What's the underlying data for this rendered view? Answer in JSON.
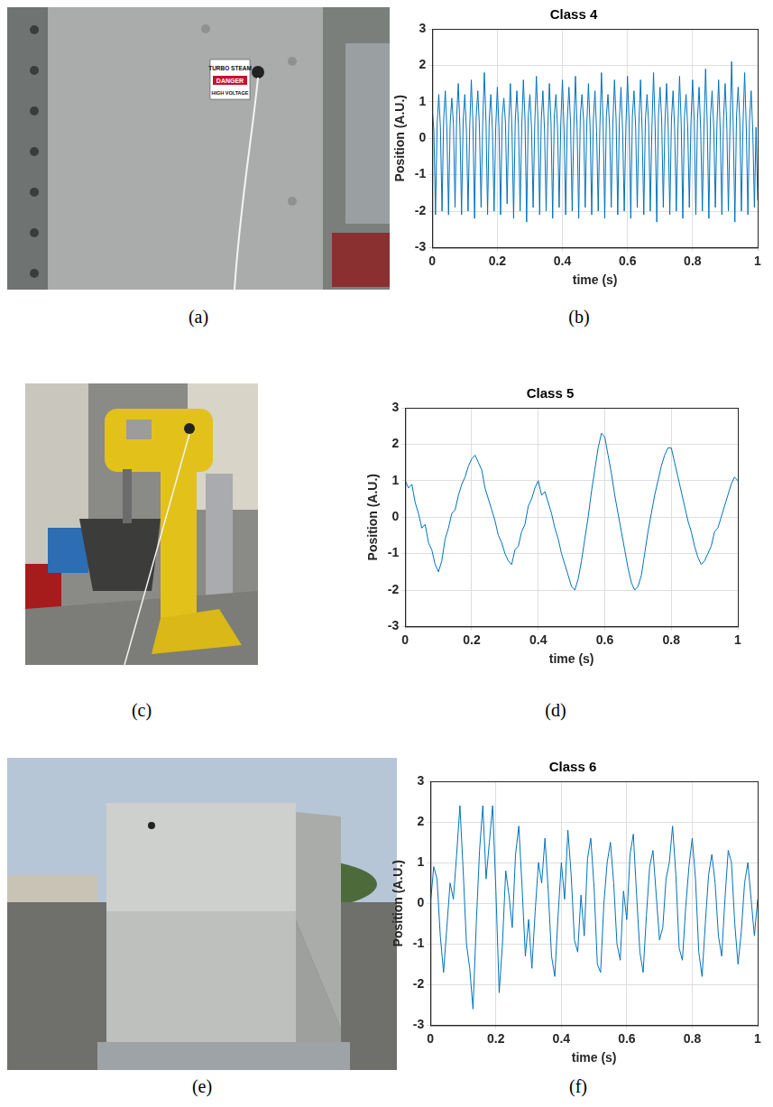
{
  "chart_data": [
    {
      "panel": "(b)",
      "type": "line",
      "title": "Class 4",
      "x_label": "time (s)",
      "y_label": "Position (A.U.)",
      "color": "#0072bd",
      "grid": true,
      "xlim": [
        0,
        1
      ],
      "xticks": [
        0,
        0.2,
        0.4,
        0.6,
        0.8,
        1
      ],
      "ylim": [
        -3,
        3
      ],
      "yticks": [
        -3,
        -2,
        -1,
        0,
        1,
        2,
        3
      ],
      "x": [
        0,
        0.005,
        0.01,
        0.015,
        0.02,
        0.025,
        0.03,
        0.035,
        0.04,
        0.045,
        0.05,
        0.055,
        0.06,
        0.065,
        0.07,
        0.075,
        0.08,
        0.085,
        0.09,
        0.095,
        0.1,
        0.105,
        0.11,
        0.115,
        0.12,
        0.125,
        0.13,
        0.135,
        0.14,
        0.145,
        0.15,
        0.155,
        0.16,
        0.165,
        0.17,
        0.175,
        0.18,
        0.185,
        0.19,
        0.195,
        0.2,
        0.205,
        0.21,
        0.215,
        0.22,
        0.225,
        0.23,
        0.235,
        0.24,
        0.245,
        0.25,
        0.255,
        0.26,
        0.265,
        0.27,
        0.275,
        0.28,
        0.285,
        0.29,
        0.295,
        0.3,
        0.305,
        0.31,
        0.315,
        0.32,
        0.325,
        0.33,
        0.335,
        0.34,
        0.345,
        0.35,
        0.355,
        0.36,
        0.365,
        0.37,
        0.375,
        0.38,
        0.385,
        0.39,
        0.395,
        0.4,
        0.405,
        0.41,
        0.415,
        0.42,
        0.425,
        0.43,
        0.435,
        0.44,
        0.445,
        0.45,
        0.455,
        0.46,
        0.465,
        0.47,
        0.475,
        0.48,
        0.485,
        0.49,
        0.495,
        0.5,
        0.505,
        0.51,
        0.515,
        0.52,
        0.525,
        0.53,
        0.535,
        0.54,
        0.545,
        0.55,
        0.555,
        0.56,
        0.565,
        0.57,
        0.575,
        0.58,
        0.585,
        0.59,
        0.595,
        0.6,
        0.605,
        0.61,
        0.615,
        0.62,
        0.625,
        0.63,
        0.635,
        0.64,
        0.645,
        0.65,
        0.655,
        0.66,
        0.665,
        0.67,
        0.675,
        0.68,
        0.685,
        0.69,
        0.695,
        0.7,
        0.705,
        0.71,
        0.715,
        0.72,
        0.725,
        0.73,
        0.735,
        0.74,
        0.745,
        0.75,
        0.755,
        0.76,
        0.765,
        0.77,
        0.775,
        0.78,
        0.785,
        0.79,
        0.795,
        0.8,
        0.805,
        0.81,
        0.815,
        0.82,
        0.825,
        0.83,
        0.835,
        0.84,
        0.845,
        0.85,
        0.855,
        0.86,
        0.865,
        0.87,
        0.875,
        0.88,
        0.885,
        0.89,
        0.895,
        0.9,
        0.905,
        0.91,
        0.915,
        0.92,
        0.925,
        0.93,
        0.935,
        0.94,
        0.945,
        0.95,
        0.955,
        0.96,
        0.965,
        0.97,
        0.975,
        0.98,
        0.985,
        0.99,
        0.995,
        1
      ],
      "values": [
        0.8,
        0.2,
        -2.1,
        0.4,
        1.2,
        0.3,
        -2.0,
        0.5,
        1.3,
        0.2,
        -2.1,
        0.4,
        1.1,
        0.4,
        -1.9,
        0.6,
        1.5,
        0.3,
        -2.1,
        0.5,
        1.2,
        0.2,
        -2.0,
        0.3,
        1.6,
        0.4,
        -2.2,
        0.6,
        1.3,
        0.3,
        -1.9,
        0.4,
        1.8,
        0.5,
        -2.1,
        0.5,
        1.2,
        0.2,
        -2.0,
        0.3,
        1.4,
        0.3,
        -2.1,
        0.6,
        1.1,
        0.4,
        -1.8,
        0.4,
        1.5,
        0.2,
        -2.2,
        0.5,
        1.3,
        0.3,
        -2.0,
        0.3,
        1.6,
        0.5,
        -2.3,
        0.6,
        1.2,
        0.3,
        -1.9,
        0.4,
        1.7,
        0.4,
        -2.1,
        0.5,
        1.3,
        0.2,
        -2.0,
        0.3,
        1.5,
        0.4,
        -2.2,
        0.6,
        1.2,
        0.3,
        -1.9,
        0.4,
        1.6,
        0.2,
        -2.1,
        0.5,
        1.4,
        0.4,
        -2.0,
        0.3,
        1.7,
        0.3,
        -2.2,
        0.6,
        1.2,
        0.5,
        -1.9,
        0.4,
        1.5,
        0.3,
        -2.1,
        0.5,
        1.3,
        0.2,
        -2.0,
        0.3,
        1.8,
        0.4,
        -2.2,
        0.6,
        1.2,
        0.3,
        -1.9,
        0.4,
        1.6,
        0.5,
        -2.1,
        0.5,
        1.4,
        0.2,
        -2.0,
        0.3,
        1.7,
        0.4,
        -2.2,
        0.6,
        1.3,
        0.3,
        -1.9,
        0.4,
        1.6,
        0.2,
        -2.1,
        0.5,
        1.2,
        0.4,
        -2.0,
        0.3,
        1.8,
        0.3,
        -2.3,
        0.6,
        1.4,
        0.5,
        -1.9,
        0.4,
        1.5,
        0.3,
        -2.1,
        0.5,
        1.3,
        0.2,
        -2.0,
        0.3,
        1.7,
        0.4,
        -2.2,
        0.6,
        1.2,
        0.3,
        -1.9,
        0.4,
        1.6,
        0.5,
        -2.1,
        0.5,
        1.4,
        0.2,
        -2.0,
        0.3,
        1.9,
        0.4,
        -2.2,
        0.6,
        1.3,
        0.3,
        -1.9,
        0.4,
        1.6,
        0.2,
        -2.1,
        0.5,
        1.5,
        0.4,
        -2.0,
        0.3,
        2.1,
        0.3,
        -2.3,
        0.6,
        1.4,
        0.5,
        -2.0,
        0.4,
        1.8,
        0.3,
        -2.1,
        0.5,
        1.3,
        0.2,
        -1.9,
        0.3,
        -1.7
      ]
    },
    {
      "panel": "(d)",
      "type": "line",
      "title": "Class 5",
      "x_label": "time (s)",
      "y_label": "Position (A.U.)",
      "color": "#0072bd",
      "grid": true,
      "xlim": [
        0,
        1
      ],
      "xticks": [
        0,
        0.2,
        0.4,
        0.6,
        0.8,
        1
      ],
      "ylim": [
        -3,
        3
      ],
      "yticks": [
        -3,
        -2,
        -1,
        0,
        1,
        2,
        3
      ],
      "x": [
        0,
        0.01,
        0.02,
        0.03,
        0.04,
        0.05,
        0.06,
        0.07,
        0.08,
        0.09,
        0.1,
        0.11,
        0.12,
        0.13,
        0.14,
        0.15,
        0.16,
        0.17,
        0.18,
        0.19,
        0.2,
        0.21,
        0.22,
        0.23,
        0.24,
        0.25,
        0.26,
        0.27,
        0.28,
        0.29,
        0.3,
        0.31,
        0.32,
        0.33,
        0.34,
        0.35,
        0.36,
        0.37,
        0.38,
        0.39,
        0.4,
        0.41,
        0.42,
        0.43,
        0.44,
        0.45,
        0.46,
        0.47,
        0.48,
        0.49,
        0.5,
        0.51,
        0.52,
        0.53,
        0.54,
        0.55,
        0.56,
        0.57,
        0.58,
        0.59,
        0.6,
        0.61,
        0.62,
        0.63,
        0.64,
        0.65,
        0.66,
        0.67,
        0.68,
        0.69,
        0.7,
        0.71,
        0.72,
        0.73,
        0.74,
        0.75,
        0.76,
        0.77,
        0.78,
        0.79,
        0.8,
        0.81,
        0.82,
        0.83,
        0.84,
        0.85,
        0.86,
        0.87,
        0.88,
        0.89,
        0.9,
        0.91,
        0.92,
        0.93,
        0.94,
        0.95,
        0.96,
        0.97,
        0.98,
        0.99,
        1
      ],
      "values": [
        1.0,
        0.8,
        0.9,
        0.4,
        0.1,
        -0.3,
        -0.2,
        -0.7,
        -0.9,
        -1.3,
        -1.5,
        -1.2,
        -0.6,
        -0.3,
        0.1,
        0.2,
        0.6,
        0.9,
        1.1,
        1.4,
        1.6,
        1.7,
        1.5,
        1.3,
        0.8,
        0.5,
        0.2,
        -0.1,
        -0.5,
        -0.7,
        -1.0,
        -1.2,
        -1.3,
        -0.9,
        -0.8,
        -0.4,
        -0.2,
        0.3,
        0.5,
        0.8,
        1.0,
        0.6,
        0.7,
        0.4,
        0.1,
        -0.3,
        -0.6,
        -1.0,
        -1.3,
        -1.6,
        -1.9,
        -2.0,
        -1.7,
        -1.2,
        -0.6,
        0.0,
        0.7,
        1.3,
        1.9,
        2.3,
        2.2,
        1.7,
        1.2,
        0.6,
        0.1,
        -0.4,
        -0.9,
        -1.4,
        -1.8,
        -2.0,
        -1.9,
        -1.6,
        -1.0,
        -0.4,
        0.1,
        0.6,
        1.0,
        1.4,
        1.7,
        1.9,
        1.9,
        1.5,
        1.1,
        0.7,
        0.3,
        -0.1,
        -0.4,
        -0.8,
        -1.1,
        -1.3,
        -1.2,
        -1.0,
        -0.8,
        -0.4,
        -0.3,
        0.0,
        0.3,
        0.6,
        0.9,
        1.1,
        1.0
      ]
    },
    {
      "panel": "(f)",
      "type": "line",
      "title": "Class 6",
      "x_label": "time (s)",
      "y_label": "Position (A.U.)",
      "color": "#0072bd",
      "grid": true,
      "xlim": [
        0,
        1
      ],
      "xticks": [
        0,
        0.2,
        0.4,
        0.6,
        0.8,
        1
      ],
      "ylim": [
        -3,
        3
      ],
      "yticks": [
        -3,
        -2,
        -1,
        0,
        1,
        2,
        3
      ],
      "x": [
        0,
        0.01,
        0.02,
        0.03,
        0.04,
        0.05,
        0.06,
        0.07,
        0.08,
        0.09,
        0.1,
        0.11,
        0.12,
        0.13,
        0.14,
        0.15,
        0.16,
        0.17,
        0.18,
        0.19,
        0.2,
        0.21,
        0.22,
        0.23,
        0.24,
        0.25,
        0.26,
        0.27,
        0.28,
        0.29,
        0.3,
        0.31,
        0.32,
        0.33,
        0.34,
        0.35,
        0.36,
        0.37,
        0.38,
        0.39,
        0.4,
        0.41,
        0.42,
        0.43,
        0.44,
        0.45,
        0.46,
        0.47,
        0.48,
        0.49,
        0.5,
        0.51,
        0.52,
        0.53,
        0.54,
        0.55,
        0.56,
        0.57,
        0.58,
        0.59,
        0.6,
        0.61,
        0.62,
        0.63,
        0.64,
        0.65,
        0.66,
        0.67,
        0.68,
        0.69,
        0.7,
        0.71,
        0.72,
        0.73,
        0.74,
        0.75,
        0.76,
        0.77,
        0.78,
        0.79,
        0.8,
        0.81,
        0.82,
        0.83,
        0.84,
        0.85,
        0.86,
        0.87,
        0.88,
        0.89,
        0.9,
        0.91,
        0.92,
        0.93,
        0.94,
        0.95,
        0.96,
        0.97,
        0.98,
        0.99,
        1
      ],
      "values": [
        0.0,
        0.9,
        0.6,
        -0.8,
        -1.7,
        -0.6,
        0.5,
        0.1,
        1.2,
        2.4,
        0.8,
        -1.0,
        -1.6,
        -2.6,
        -0.5,
        1.3,
        2.4,
        0.6,
        1.5,
        2.4,
        0.3,
        -2.2,
        -1.0,
        0.8,
        0.2,
        -0.6,
        1.2,
        1.9,
        0.4,
        -1.3,
        -0.4,
        -1.6,
        -0.2,
        1.0,
        0.5,
        1.6,
        0.3,
        -1.3,
        -1.8,
        -0.3,
        1.0,
        0.1,
        1.8,
        0.7,
        -0.9,
        -1.2,
        0.2,
        -0.8,
        1.1,
        1.6,
        0.4,
        -1.5,
        -1.7,
        0.0,
        1.0,
        1.5,
        0.5,
        -1.0,
        -1.4,
        0.3,
        -0.4,
        1.2,
        1.7,
        0.2,
        -1.2,
        -1.7,
        -0.3,
        0.9,
        1.3,
        0.2,
        -0.9,
        -0.6,
        0.6,
        1.0,
        1.9,
        0.7,
        -1.1,
        -1.4,
        -0.1,
        0.9,
        1.6,
        0.6,
        -1.2,
        -1.8,
        -0.5,
        0.7,
        1.2,
        0.5,
        -0.8,
        -1.3,
        0.1,
        1.3,
        1.0,
        -0.5,
        -1.5,
        -0.7,
        0.5,
        1.0,
        0.1,
        -0.8,
        0.1
      ]
    }
  ],
  "photos": [
    {
      "panel": "(a)",
      "texts": [
        "TURBO STEAM",
        "DANGER",
        "HIGH VOLTAGE"
      ]
    },
    {
      "panel": "(c)"
    },
    {
      "panel": "(e)"
    }
  ]
}
